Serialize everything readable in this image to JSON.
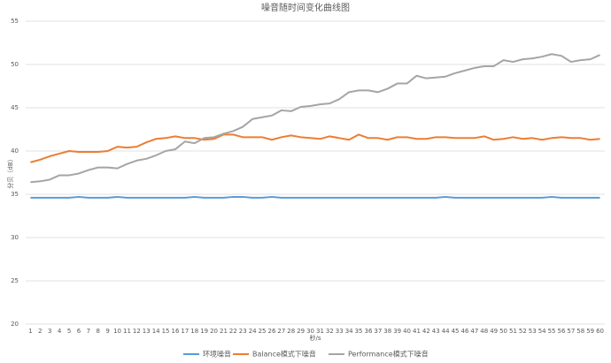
{
  "chart_data": {
    "type": "line",
    "title": "噪音随时间变化曲线图",
    "y_label": "分贝（dB）",
    "x_label": "秒/s",
    "categories": [
      "1",
      "2",
      "3",
      "4",
      "5",
      "6",
      "7",
      "8",
      "9",
      "10",
      "11",
      "12",
      "13",
      "14",
      "15",
      "16",
      "17",
      "18",
      "19",
      "20",
      "21",
      "22",
      "23",
      "24",
      "25",
      "26",
      "27",
      "28",
      "29",
      "30",
      "31",
      "32",
      "33",
      "34",
      "35",
      "36",
      "37",
      "38",
      "39",
      "40",
      "41",
      "42",
      "43",
      "44",
      "45",
      "46",
      "47",
      "48",
      "49",
      "50",
      "51",
      "52",
      "53",
      "54",
      "55",
      "56",
      "57",
      "58",
      "59",
      "60"
    ],
    "series": [
      {
        "name": "环境噪音",
        "color": "#5b9bd5",
        "values": [
          34.6,
          34.6,
          34.6,
          34.6,
          34.6,
          34.7,
          34.6,
          34.6,
          34.6,
          34.7,
          34.6,
          34.6,
          34.6,
          34.6,
          34.6,
          34.6,
          34.6,
          34.7,
          34.6,
          34.6,
          34.6,
          34.7,
          34.7,
          34.6,
          34.6,
          34.7,
          34.6,
          34.6,
          34.6,
          34.6,
          34.6,
          34.6,
          34.6,
          34.6,
          34.6,
          34.6,
          34.6,
          34.6,
          34.6,
          34.6,
          34.6,
          34.6,
          34.6,
          34.7,
          34.6,
          34.6,
          34.6,
          34.6,
          34.6,
          34.6,
          34.6,
          34.6,
          34.6,
          34.6,
          34.7,
          34.6,
          34.6,
          34.6,
          34.6,
          34.6
        ]
      },
      {
        "name": "Balance模式下噪音",
        "color": "#ed7d31",
        "values": [
          38.7,
          39.0,
          39.4,
          39.7,
          40.0,
          39.9,
          39.9,
          39.9,
          40.0,
          40.5,
          40.4,
          40.5,
          41.0,
          41.4,
          41.5,
          41.7,
          41.5,
          41.5,
          41.3,
          41.4,
          41.9,
          41.9,
          41.6,
          41.6,
          41.6,
          41.3,
          41.6,
          41.8,
          41.6,
          41.5,
          41.4,
          41.7,
          41.5,
          41.3,
          41.9,
          41.5,
          41.5,
          41.3,
          41.6,
          41.6,
          41.4,
          41.4,
          41.6,
          41.6,
          41.5,
          41.5,
          41.5,
          41.7,
          41.3,
          41.4,
          41.6,
          41.4,
          41.5,
          41.3,
          41.5,
          41.6,
          41.5,
          41.5,
          41.3,
          41.4
        ]
      },
      {
        "name": "Performance模式下噪音",
        "color": "#a5a5a5",
        "values": [
          36.4,
          36.5,
          36.7,
          37.2,
          37.2,
          37.4,
          37.8,
          38.1,
          38.1,
          38.0,
          38.5,
          38.9,
          39.1,
          39.5,
          40.0,
          40.2,
          41.1,
          40.9,
          41.5,
          41.6,
          42.0,
          42.3,
          42.8,
          43.7,
          43.9,
          44.1,
          44.7,
          44.6,
          45.1,
          45.2,
          45.4,
          45.5,
          46.0,
          46.8,
          47.0,
          47.0,
          46.8,
          47.2,
          47.8,
          47.8,
          48.7,
          48.4,
          48.5,
          48.6,
          49.0,
          49.3,
          49.6,
          49.8,
          49.8,
          50.5,
          50.3,
          50.6,
          50.7,
          50.9,
          51.2,
          51.0,
          50.3,
          50.5,
          50.6,
          51.1
        ]
      }
    ],
    "ylim": [
      20,
      55
    ],
    "yticks": [
      20,
      25,
      30,
      35,
      40,
      45,
      50,
      55
    ],
    "grid": true,
    "legend": "bottom"
  }
}
